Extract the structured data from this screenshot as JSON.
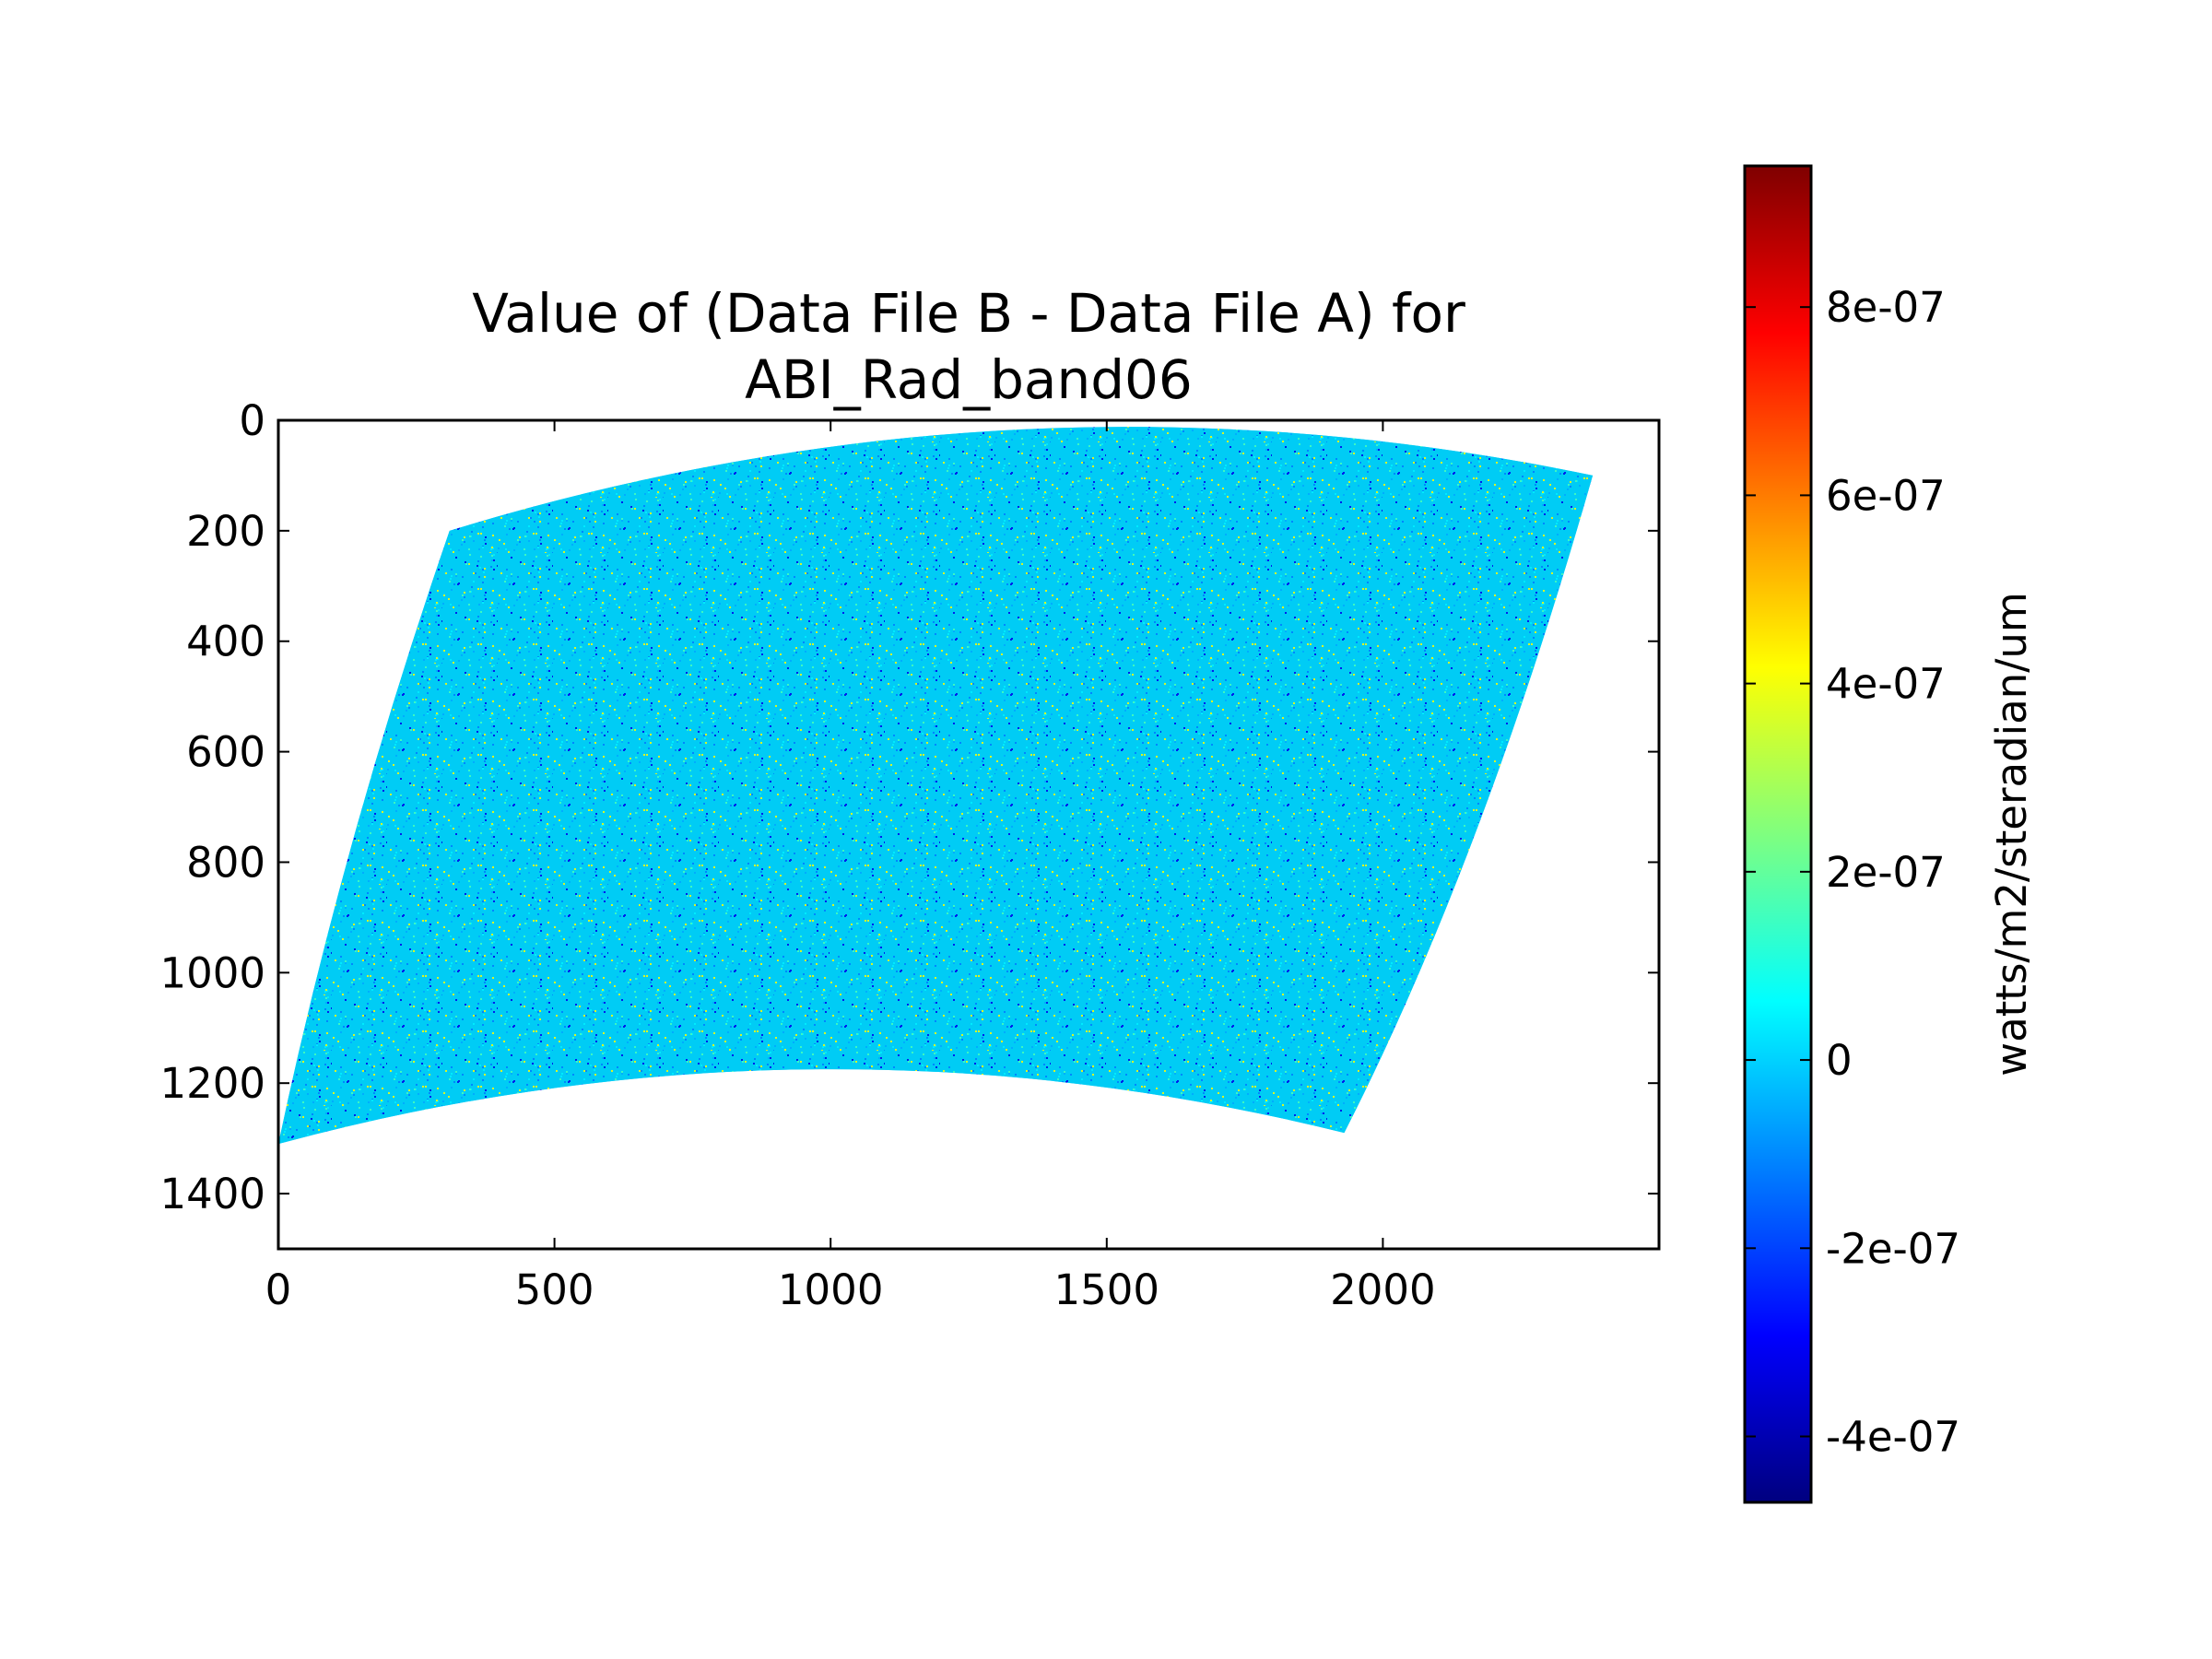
{
  "chart_data": {
    "type": "heatmap",
    "title_lines": [
      "Value of (Data File B - Data File A) for",
      "ABI_Rad_band06"
    ],
    "xlabel": "",
    "ylabel": "",
    "xlim": [
      0,
      2500
    ],
    "ylim": [
      1500,
      0
    ],
    "x_ticks": [
      0,
      500,
      1000,
      1500,
      2000
    ],
    "x_tick_labels": [
      "0",
      "500",
      "1000",
      "1500",
      "2000"
    ],
    "y_ticks": [
      0,
      200,
      400,
      600,
      800,
      1000,
      1200,
      1400
    ],
    "y_tick_labels": [
      "0",
      "200",
      "400",
      "600",
      "800",
      "1000",
      "1200",
      "1400"
    ],
    "data_footprint": {
      "description_units": "pixel column/row",
      "top_left": [
        310,
        200
      ],
      "top_right": [
        2380,
        100
      ],
      "bottom_right": [
        1930,
        1290
      ],
      "bottom_left": [
        0,
        1310
      ],
      "top_edge_peak_y": 0,
      "bottom_edge_peak_y": 1150
    },
    "colorbar": {
      "label": "watts/m2/steradian/um",
      "min": -4.7e-07,
      "max": 9.5e-07,
      "ticks": [
        -4e-07,
        -2e-07,
        0,
        2e-07,
        4e-07,
        6e-07,
        8e-07
      ],
      "tick_labels": [
        "-4e-07",
        "-2e-07",
        "0",
        "2e-07",
        "4e-07",
        "6e-07",
        "8e-07"
      ],
      "colormap": "jet",
      "colormap_stops": [
        "#00007f",
        "#0000ff",
        "#007fff",
        "#00ffff",
        "#7fff7f",
        "#ffff00",
        "#ff7f00",
        "#ff0000",
        "#7f0000"
      ]
    },
    "dominant_value": 0,
    "dominant_color": "#00ccf5",
    "grid": false
  }
}
